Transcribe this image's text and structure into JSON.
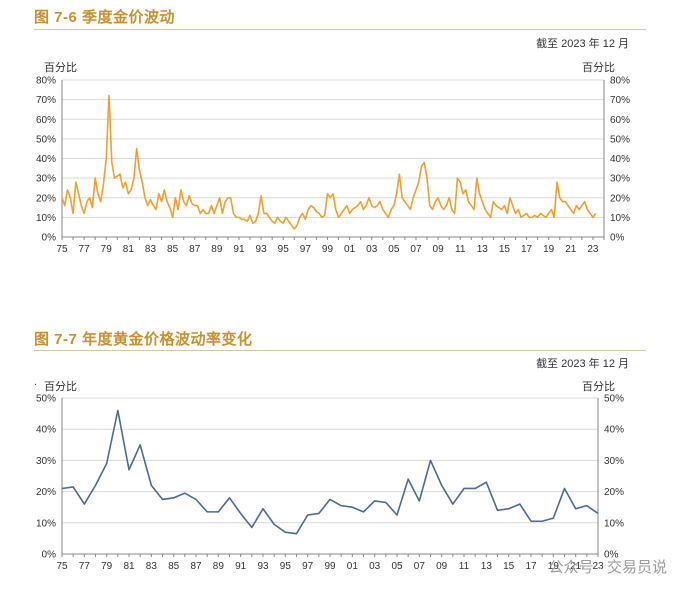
{
  "watermark": {
    "part1": "公众号",
    "sep": "·",
    "part2": "交易员说"
  },
  "chart_data": [
    {
      "type": "line",
      "title": "图 7-6  季度金价波动",
      "subtitle": "截至 2023 年 12 月",
      "ylabel_left": "百分比",
      "ylabel_right": "百分比",
      "color": "#f0a030",
      "ylim": [
        0,
        80
      ],
      "yticks": [
        "0%",
        "10%",
        "20%",
        "30%",
        "40%",
        "50%",
        "60%",
        "70%",
        "80%"
      ],
      "x_start": 1975,
      "x_end": 2024,
      "xtick_labels": [
        "75",
        "77",
        "79",
        "81",
        "83",
        "85",
        "87",
        "89",
        "91",
        "93",
        "95",
        "97",
        "99",
        "01",
        "03",
        "05",
        "07",
        "09",
        "11",
        "13",
        "15",
        "17",
        "19",
        "21",
        "23"
      ],
      "series": [
        {
          "x_step": 0.25,
          "values": [
            20,
            16,
            24,
            20,
            12,
            28,
            22,
            16,
            12,
            18,
            20,
            15,
            30,
            22,
            18,
            27,
            40,
            72,
            38,
            30,
            31,
            32,
            25,
            28,
            22,
            24,
            30,
            45,
            34,
            28,
            20,
            16,
            19,
            16,
            14,
            22,
            18,
            24,
            18,
            15,
            10,
            20,
            14,
            24,
            18,
            16,
            21,
            17,
            16,
            16,
            12,
            14,
            12,
            12,
            16,
            12,
            16,
            20,
            12,
            18,
            20,
            20,
            12,
            10,
            10,
            9,
            9,
            8,
            11,
            7,
            8,
            12,
            21,
            12,
            12,
            10,
            8,
            7,
            10,
            8,
            7,
            10,
            8,
            6,
            4,
            6,
            10,
            12,
            9,
            14,
            16,
            15,
            13,
            12,
            10,
            11,
            22,
            20,
            22,
            14,
            10,
            12,
            14,
            16,
            12,
            14,
            15,
            16,
            18,
            14,
            16,
            20,
            16,
            15,
            16,
            18,
            14,
            12,
            10,
            14,
            16,
            22,
            32,
            20,
            18,
            16,
            14,
            20,
            24,
            28,
            36,
            38,
            30,
            16,
            14,
            18,
            20,
            16,
            14,
            16,
            20,
            14,
            12,
            30,
            28,
            22,
            24,
            18,
            16,
            14,
            30,
            22,
            18,
            14,
            12,
            10,
            18,
            16,
            15,
            14,
            16,
            12,
            20,
            16,
            12,
            14,
            10,
            11,
            12,
            10,
            10,
            11,
            10,
            12,
            11,
            10,
            12,
            14,
            10,
            28,
            20,
            18,
            18,
            16,
            14,
            12,
            16,
            14,
            16,
            18,
            14,
            12,
            10,
            12
          ],
          "name": ""
        }
      ]
    },
    {
      "type": "line",
      "title": "图 7-7  年度黄金价格波动率变化",
      "subtitle": "截至 2023 年 12 月",
      "ylabel_left": "百分比",
      "ylabel_right": "百分比",
      "color": "#4a6a9a",
      "ylim": [
        0,
        50
      ],
      "yticks": [
        "0%",
        "10%",
        "20%",
        "30%",
        "40%",
        "50%"
      ],
      "x_start": 1975,
      "x_end": 2023,
      "xtick_labels": [
        "75",
        "77",
        "79",
        "81",
        "83",
        "85",
        "87",
        "89",
        "91",
        "93",
        "95",
        "97",
        "99",
        "01",
        "03",
        "05",
        "07",
        "09",
        "11",
        "13",
        "15",
        "17",
        "19",
        "21",
        "23"
      ],
      "series": [
        {
          "x_step": 1,
          "values": [
            21,
            21.5,
            16,
            22,
            29,
            46,
            27,
            35,
            22,
            17.5,
            18,
            19.5,
            17.5,
            13.5,
            13.5,
            18,
            13,
            8.5,
            14.5,
            9.5,
            7,
            6.5,
            12.5,
            13,
            17.5,
            15.5,
            15,
            13.5,
            17,
            16.5,
            12.5,
            24,
            17,
            30,
            22,
            16,
            21,
            21,
            23,
            14,
            14.5,
            16,
            10.5,
            10.5,
            11.5,
            21,
            14.5,
            15.5,
            13
          ],
          "name": ""
        }
      ]
    }
  ]
}
